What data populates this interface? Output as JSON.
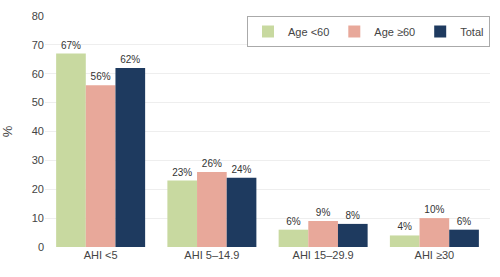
{
  "chart_data": {
    "type": "bar",
    "categories": [
      "AHI <5",
      "AHI 5–14.9",
      "AHI 15–29.9",
      "AHI ≥30"
    ],
    "series": [
      {
        "name": "Age <60",
        "color": "#c8d9a0",
        "values": [
          67,
          23,
          6,
          4
        ],
        "value_labels": [
          "67%",
          "23%",
          "6%",
          "4%"
        ]
      },
      {
        "name": "Age ≥60",
        "color": "#e8a89a",
        "values": [
          56,
          26,
          9,
          10
        ],
        "value_labels": [
          "56%",
          "26%",
          "9%",
          "10%"
        ]
      },
      {
        "name": "Total",
        "color": "#1e3a5f",
        "values": [
          62,
          24,
          8,
          6
        ],
        "value_labels": [
          "62%",
          "24%",
          "8%",
          "6%"
        ]
      }
    ],
    "ylabel": "%",
    "ylim": [
      0,
      80
    ],
    "yticks": [
      0,
      10,
      20,
      30,
      40,
      50,
      60,
      70,
      80
    ],
    "grid": true,
    "legend": "upper right",
    "data_labels": true
  }
}
